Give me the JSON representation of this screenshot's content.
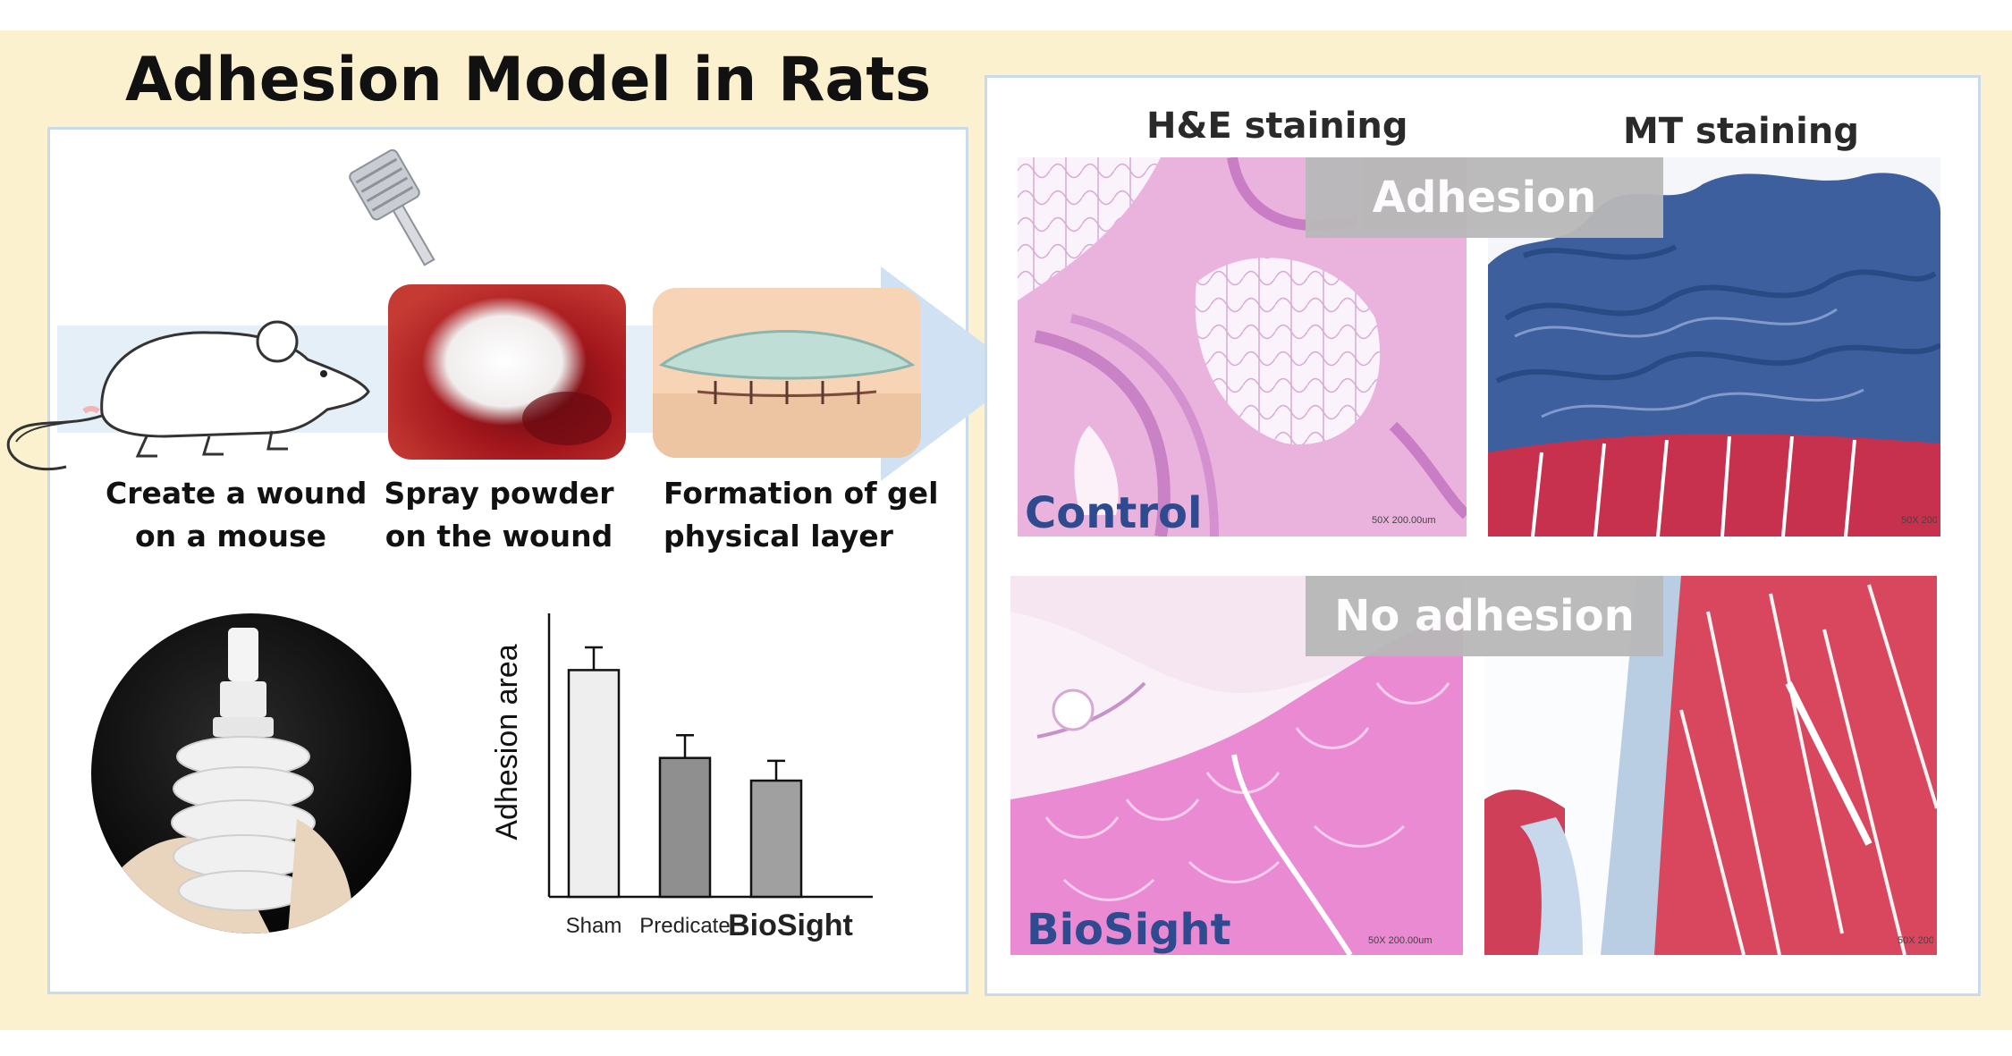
{
  "header": {
    "title": "Adhesion Model in Rats"
  },
  "steps": [
    {
      "line1": "Create a wound",
      "line2": "on a mouse",
      "icon": "rat-icon"
    },
    {
      "line1": "Spray powder",
      "line2": "on the wound",
      "icon": "spray-powder-photo"
    },
    {
      "line1": "Formation of gel",
      "line2": "physical layer",
      "icon": "gel-layer-illustration"
    }
  ],
  "histology": {
    "stains": [
      "H&E staining",
      "MT staining"
    ],
    "rows": [
      {
        "group": "Control",
        "result": "Adhesion"
      },
      {
        "group": "BioSight",
        "result": "No adhesion"
      }
    ],
    "scale_bar_text": "50X 200.00um"
  },
  "colors": {
    "background_band": "#fcf1cf",
    "panel_border": "#c9dbe8",
    "group_label": "#2e4b8f",
    "result_tag": "#b8b8b8",
    "he_stain": "#e7a3d6",
    "mt_stain_blue": "#3e5f9e",
    "muscle_red": "#c9354f"
  },
  "chart_data": {
    "type": "bar",
    "ylabel": "Adhesion area",
    "xlabel": "",
    "categories": [
      "Sham",
      "Predicate",
      "BioSight"
    ],
    "values": [
      0.8,
      0.49,
      0.41
    ],
    "errors": [
      0.08,
      0.08,
      0.07
    ],
    "bar_colors": [
      "#eeeeee",
      "#8f8f8f",
      "#a0a0a0"
    ],
    "ylim": [
      0,
      1
    ],
    "grid": false,
    "highlight_category": "BioSight"
  }
}
